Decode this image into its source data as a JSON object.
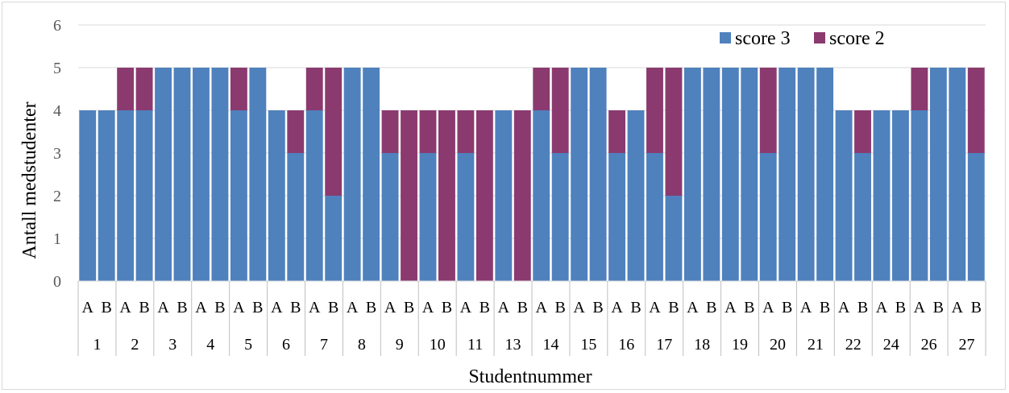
{
  "chart_data": {
    "type": "bar",
    "stacked": true,
    "xlabel": "Studentnummer",
    "ylabel": "Antall medstudenter",
    "ylim": [
      0,
      6
    ],
    "yticks": [
      0,
      1,
      2,
      3,
      4,
      5,
      6
    ],
    "grid": true,
    "legend": "top-right",
    "groups": [
      "1",
      "2",
      "3",
      "4",
      "5",
      "6",
      "7",
      "8",
      "9",
      "10",
      "11",
      "13",
      "14",
      "15",
      "16",
      "17",
      "18",
      "19",
      "20",
      "21",
      "22",
      "24",
      "26",
      "27"
    ],
    "subcategories": [
      "A",
      "B"
    ],
    "series": [
      {
        "name": "score 3",
        "color": "#4f81bd",
        "values": [
          4,
          4,
          4,
          4,
          5,
          5,
          5,
          5,
          4,
          5,
          4,
          3,
          4,
          2,
          5,
          5,
          3,
          0,
          3,
          0,
          3,
          0,
          4,
          0,
          4,
          3,
          5,
          5,
          3,
          4,
          3,
          2,
          5,
          5,
          5,
          5,
          3,
          5,
          5,
          5,
          4,
          3,
          4,
          4,
          4,
          5,
          5,
          3
        ]
      },
      {
        "name": "score 2",
        "color": "#8b3a6f",
        "values": [
          0,
          0,
          1,
          1,
          0,
          0,
          0,
          0,
          1,
          0,
          0,
          1,
          1,
          3,
          0,
          0,
          1,
          4,
          1,
          4,
          1,
          4,
          0,
          4,
          1,
          2,
          0,
          0,
          1,
          0,
          2,
          3,
          0,
          0,
          0,
          0,
          2,
          0,
          0,
          0,
          0,
          1,
          0,
          0,
          1,
          0,
          0,
          2
        ]
      }
    ]
  }
}
